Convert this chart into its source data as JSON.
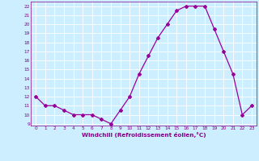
{
  "x": [
    0,
    1,
    2,
    3,
    4,
    5,
    6,
    7,
    8,
    9,
    10,
    11,
    12,
    13,
    14,
    15,
    16,
    17,
    18,
    19,
    20,
    21,
    22,
    23
  ],
  "y": [
    12,
    11,
    11,
    10.5,
    10,
    10,
    10,
    9.5,
    9,
    10.5,
    12,
    14.5,
    16.5,
    18.5,
    20,
    21.5,
    22,
    22,
    22,
    19.5,
    17,
    14.5,
    10,
    11
  ],
  "line_color": "#990099",
  "marker": "D",
  "marker_size": 2,
  "bg_color": "#cceeff",
  "grid_color": "#ffffff",
  "xlabel": "Windchill (Refroidissement éolien,°C)",
  "xlabel_color": "#880088",
  "tick_color": "#880088",
  "ylim": [
    8.8,
    22.5
  ],
  "xlim": [
    -0.5,
    23.5
  ],
  "yticks": [
    9,
    10,
    11,
    12,
    13,
    14,
    15,
    16,
    17,
    18,
    19,
    20,
    21,
    22
  ],
  "xticks": [
    0,
    1,
    2,
    3,
    4,
    5,
    6,
    7,
    8,
    9,
    10,
    11,
    12,
    13,
    14,
    15,
    16,
    17,
    18,
    19,
    20,
    21,
    22,
    23
  ]
}
